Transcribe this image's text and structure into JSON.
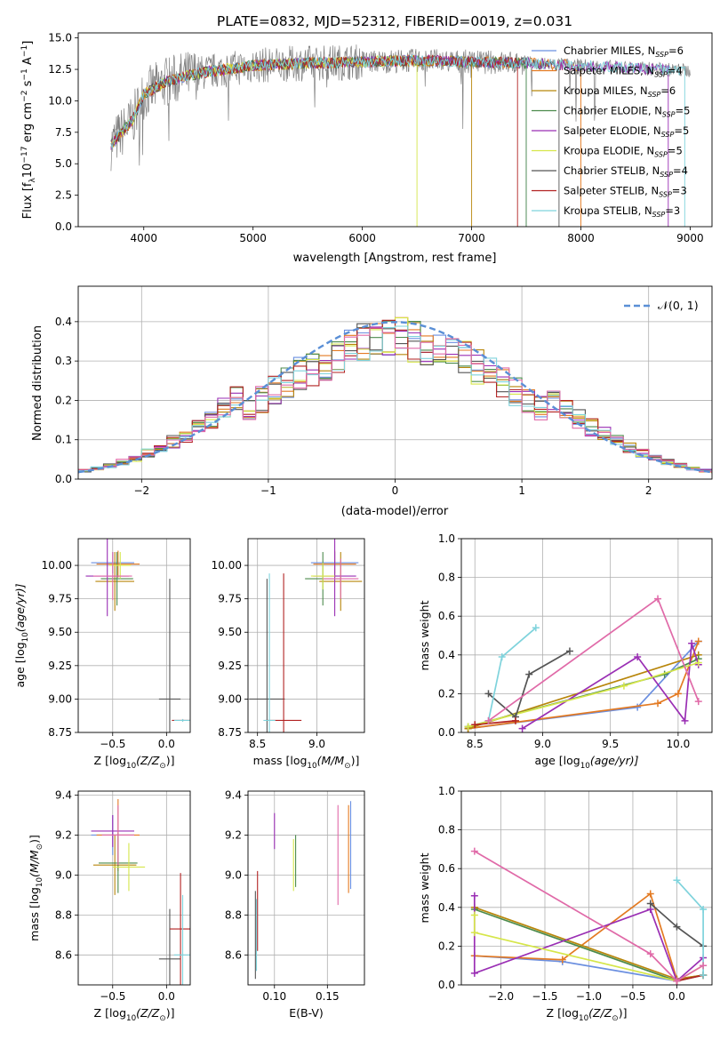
{
  "colors": [
    "#6b8fe0",
    "#e37a22",
    "#b8860b",
    "#4c8b4c",
    "#9a2fb4",
    "#d6e64a",
    "#555555",
    "#b22222",
    "#7fd3dc",
    "#e06aa8"
  ],
  "chart_data": [
    {
      "id": "spectrum",
      "type": "line",
      "title": "PLATE=0832, MJD=52312, FIBERID=0019, z=0.031",
      "xlabel": "wavelength [Angstrom, rest frame]",
      "ylabel": "Flux [f",
      "ylabel_parts": [
        "Flux [f",
        "λ",
        "10",
        "−17",
        " erg cm",
        "−2",
        " s",
        "−1",
        " A",
        "−1",
        "]"
      ],
      "xlim": [
        3400,
        9200
      ],
      "ylim": [
        0,
        15.4
      ],
      "xticks": [
        4000,
        5000,
        6000,
        7000,
        8000,
        9000
      ],
      "yticks": [
        0.0,
        2.5,
        5.0,
        7.5,
        10.0,
        12.5,
        15.0
      ],
      "legend": "top-right",
      "legend_entries": [
        {
          "model": "Chabrier MILES",
          "n": "6"
        },
        {
          "model": "Salpeter MILES",
          "n": "4"
        },
        {
          "model": "Kroupa MILES",
          "n": "6"
        },
        {
          "model": "Chabrier ELODIE",
          "n": "5"
        },
        {
          "model": "Salpeter ELODIE",
          "n": "5"
        },
        {
          "model": "Kroupa ELODIE",
          "n": "5"
        },
        {
          "model": "Chabrier STELIB",
          "n": "4"
        },
        {
          "model": "Salpeter STELIB",
          "n": "3"
        },
        {
          "model": "Kroupa STELIB",
          "n": "3"
        }
      ],
      "legend_n_label": "N",
      "legend_n_sub": "SSP",
      "data_series": {
        "name": "data",
        "color": "#808080",
        "x_range": [
          3700,
          9000
        ]
      },
      "continuum": {
        "x": [
          3700,
          3800,
          3900,
          4000,
          4200,
          4500,
          5000,
          5500,
          6000,
          6500,
          7000,
          7500,
          8000,
          8500,
          9000
        ],
        "y": [
          6.5,
          7.5,
          8.5,
          10.5,
          11.5,
          12.2,
          12.8,
          13.0,
          13.1,
          13.2,
          13.1,
          13.0,
          12.8,
          12.6,
          12.4
        ]
      },
      "model_end_x": [
        7500,
        8000,
        7000,
        7500,
        8800,
        6500,
        7800,
        7420,
        8950
      ]
    },
    {
      "id": "residuals",
      "type": "step",
      "xlabel": "(data-model)/error",
      "ylabel": "Normed distribution",
      "xlim": [
        -2.5,
        2.5
      ],
      "ylim": [
        0,
        0.49
      ],
      "xticks": [
        -2,
        -1,
        0,
        1,
        2
      ],
      "xtick_labels": [
        "−2",
        "−1",
        "0",
        "1",
        "2"
      ],
      "yticks": [
        0.0,
        0.1,
        0.2,
        0.3,
        0.4
      ],
      "legend": "top-right",
      "legend_entries": [
        "𝒩(0, 1)"
      ],
      "gaussian": {
        "mean": 0,
        "sigma": 1,
        "color": "#5a8fd6"
      },
      "bin_width": 0.1
    },
    {
      "id": "age-vs-Z",
      "type": "errorbar",
      "xlabel": "Z [log",
      "xlabel_parts": [
        "Z [log",
        "10",
        "(Z/Z",
        "⊙",
        ")]"
      ],
      "ylabel_parts": [
        "age  [log",
        "10",
        "(age/yr)]"
      ],
      "xlim": [
        -0.82,
        0.22
      ],
      "ylim": [
        8.75,
        10.2
      ],
      "xticks": [
        -0.5,
        0.0
      ],
      "xtick_labels": [
        "−0.5",
        "0.0"
      ],
      "yticks": [
        8.75,
        9.0,
        9.25,
        9.5,
        9.75,
        10.0
      ],
      "points": [
        {
          "x": -0.5,
          "y": 10.02,
          "xerr": 0.2,
          "yerr": 0.08
        },
        {
          "x": -0.45,
          "y": 10.01,
          "xerr": 0.2,
          "yerr": 0.1
        },
        {
          "x": -0.48,
          "y": 9.88,
          "xerr": 0.18,
          "yerr": 0.22
        },
        {
          "x": -0.46,
          "y": 9.9,
          "xerr": 0.15,
          "yerr": 0.2
        },
        {
          "x": -0.55,
          "y": 9.92,
          "xerr": 0.2,
          "yerr": 0.3
        },
        {
          "x": -0.43,
          "y": 10.0,
          "xerr": 0.1,
          "yerr": 0.1
        },
        {
          "x": 0.03,
          "y": 9.0,
          "xerr": 0.1,
          "yerr": 0.9
        },
        {
          "x": 0.15,
          "y": 8.84,
          "xerr": 0.1,
          "yerr": 0.01
        },
        {
          "x": 0.15,
          "y": 8.84,
          "xerr": 0.08,
          "yerr": 0.01
        },
        {
          "x": -0.5,
          "y": 9.92,
          "xerr": 0.18,
          "yerr": 0.18
        }
      ]
    },
    {
      "id": "age-vs-mass",
      "type": "errorbar",
      "xlabel_parts": [
        "mass [log",
        "10",
        "(M/M",
        "⊙",
        ")]"
      ],
      "xlim": [
        8.42,
        9.4
      ],
      "ylim": [
        8.75,
        10.2
      ],
      "xticks": [
        8.5,
        9.0
      ],
      "xtick_labels": [
        "8.5",
        "9.0"
      ],
      "yticks": [
        8.75,
        9.0,
        9.25,
        9.5,
        9.75,
        10.0
      ],
      "points": [
        {
          "x": 9.15,
          "y": 10.02,
          "xerr": 0.2,
          "yerr": 0.08
        },
        {
          "x": 9.15,
          "y": 10.01,
          "xerr": 0.18,
          "yerr": 0.1
        },
        {
          "x": 9.2,
          "y": 9.88,
          "xerr": 0.18,
          "yerr": 0.22
        },
        {
          "x": 9.05,
          "y": 9.9,
          "xerr": 0.15,
          "yerr": 0.2
        },
        {
          "x": 9.15,
          "y": 9.92,
          "xerr": 0.18,
          "yerr": 0.3
        },
        {
          "x": 9.05,
          "y": 9.92,
          "xerr": 0.1,
          "yerr": 0.1
        },
        {
          "x": 8.58,
          "y": 9.0,
          "xerr": 0.15,
          "yerr": 0.9
        },
        {
          "x": 8.72,
          "y": 8.84,
          "xerr": 0.15,
          "yerr": 1.1
        },
        {
          "x": 8.6,
          "y": 8.84,
          "xerr": 0.05,
          "yerr": 1.1
        },
        {
          "x": 9.2,
          "y": 9.9,
          "xerr": 0.15,
          "yerr": 0.15
        }
      ]
    },
    {
      "id": "weight-vs-age",
      "type": "line",
      "xlabel_parts": [
        "age  [log",
        "10",
        "(age/yr)]"
      ],
      "ylabel": "mass weight",
      "xlim": [
        8.4,
        10.25
      ],
      "ylim": [
        0,
        1.0
      ],
      "xticks": [
        8.5,
        9.0,
        9.5,
        10.0
      ],
      "xtick_labels": [
        "8.5",
        "9.0",
        "9.5",
        "10.0"
      ],
      "yticks": [
        0.0,
        0.2,
        0.4,
        0.6,
        0.8,
        1.0
      ],
      "series": [
        {
          "x": [
            8.45,
            9.7,
            10.15
          ],
          "y": [
            0.02,
            0.13,
            0.47
          ]
        },
        {
          "x": [
            8.45,
            9.85,
            10.0,
            10.15
          ],
          "y": [
            0.02,
            0.15,
            0.2,
            0.47
          ]
        },
        {
          "x": [
            8.45,
            10.15
          ],
          "y": [
            0.02,
            0.4
          ]
        },
        {
          "x": [
            8.45,
            9.9,
            10.15
          ],
          "y": [
            0.03,
            0.3,
            0.38
          ]
        },
        {
          "x": [
            8.85,
            9.7,
            10.05,
            10.1,
            10.15
          ],
          "y": [
            0.02,
            0.39,
            0.06,
            0.46,
            0.35
          ]
        },
        {
          "x": [
            8.45,
            9.6,
            10.15
          ],
          "y": [
            0.03,
            0.24,
            0.36
          ]
        },
        {
          "x": [
            8.6,
            8.8,
            8.9,
            9.2
          ],
          "y": [
            0.2,
            0.08,
            0.3,
            0.42
          ]
        },
        {
          "x": [
            8.5,
            8.8
          ],
          "y": [
            0.04,
            0.06
          ]
        },
        {
          "x": [
            8.6,
            8.7,
            8.95
          ],
          "y": [
            0.06,
            0.39,
            0.54
          ]
        },
        {
          "x": [
            8.6,
            9.85,
            10.15
          ],
          "y": [
            0.06,
            0.69,
            0.16
          ]
        }
      ]
    },
    {
      "id": "mass-vs-Z",
      "type": "errorbar",
      "xlabel_parts": [
        "Z [log",
        "10",
        "(Z/Z",
        "⊙",
        ")]"
      ],
      "ylabel_parts": [
        "mass [log",
        "10",
        "(M/M",
        "⊙",
        ")]"
      ],
      "xlim": [
        -0.82,
        0.22
      ],
      "ylim": [
        8.45,
        9.42
      ],
      "xticks": [
        -0.5,
        0.0
      ],
      "xtick_labels": [
        "−0.5",
        "0.0"
      ],
      "yticks": [
        8.6,
        8.8,
        9.0,
        9.2,
        9.4
      ],
      "points": [
        {
          "x": -0.5,
          "y": 9.2,
          "xerr": 0.2,
          "yerr": 0.1
        },
        {
          "x": -0.45,
          "y": 9.2,
          "xerr": 0.2,
          "yerr": 0.18
        },
        {
          "x": -0.48,
          "y": 9.05,
          "xerr": 0.2,
          "yerr": 0.15
        },
        {
          "x": -0.45,
          "y": 9.06,
          "xerr": 0.18,
          "yerr": 0.15
        },
        {
          "x": -0.5,
          "y": 9.22,
          "xerr": 0.2,
          "yerr": 0.08
        },
        {
          "x": -0.35,
          "y": 9.04,
          "xerr": 0.15,
          "yerr": 0.12
        },
        {
          "x": 0.03,
          "y": 8.58,
          "xerr": 0.1,
          "yerr": 0.25
        },
        {
          "x": 0.13,
          "y": 8.73,
          "xerr": 0.1,
          "yerr": 0.28
        },
        {
          "x": 0.15,
          "y": 8.6,
          "xerr": 0.08,
          "yerr": 0.3
        },
        {
          "x": -0.45,
          "y": 9.2,
          "xerr": 0.15,
          "yerr": 0.15
        }
      ]
    },
    {
      "id": "mass-vs-ebv",
      "type": "errorbar",
      "xlabel": "E(B-V)",
      "xlim": [
        0.075,
        0.185
      ],
      "ylim": [
        8.45,
        9.42
      ],
      "xticks": [
        0.1,
        0.15
      ],
      "xtick_labels": [
        "0.10",
        "0.15"
      ],
      "yticks": [
        8.6,
        8.8,
        9.0,
        9.2,
        9.4
      ],
      "points": [
        {
          "x": 0.172,
          "y": 9.15,
          "xerr": 0,
          "yerr": 0.22
        },
        {
          "x": 0.17,
          "y": 9.13,
          "xerr": 0,
          "yerr": 0.22
        },
        {
          "x": 0.1,
          "y": 9.0,
          "xerr": 0,
          "yerr": 0
        },
        {
          "x": 0.12,
          "y": 9.07,
          "xerr": 0,
          "yerr": 0.13
        },
        {
          "x": 0.1,
          "y": 9.22,
          "xerr": 0,
          "yerr": 0.09
        },
        {
          "x": 0.118,
          "y": 9.05,
          "xerr": 0,
          "yerr": 0.13
        },
        {
          "x": 0.082,
          "y": 8.7,
          "xerr": 0,
          "yerr": 0.22
        },
        {
          "x": 0.084,
          "y": 8.82,
          "xerr": 0,
          "yerr": 0.2
        },
        {
          "x": 0.083,
          "y": 8.7,
          "xerr": 0,
          "yerr": 0.18
        },
        {
          "x": 0.16,
          "y": 9.1,
          "xerr": 0,
          "yerr": 0.25
        }
      ]
    },
    {
      "id": "weight-vs-Z",
      "type": "line",
      "xlabel_parts": [
        "Z [log",
        "10",
        "(Z/Z",
        "⊙",
        ")]"
      ],
      "ylabel": "mass weight",
      "xlim": [
        -2.45,
        0.4
      ],
      "ylim": [
        0,
        1.0
      ],
      "xticks": [
        -2.0,
        -1.5,
        -1.0,
        -0.5,
        0.0
      ],
      "xtick_labels": [
        "−2.0",
        "−1.5",
        "−1.0",
        "−0.5",
        "0.0"
      ],
      "yticks": [
        0.0,
        0.2,
        0.4,
        0.6,
        0.8,
        1.0
      ],
      "series": [
        {
          "x": [
            -2.3,
            -1.3,
            0.0
          ],
          "y": [
            0.15,
            0.12,
            0.02
          ]
        },
        {
          "x": [
            -2.3,
            -1.3,
            -0.3,
            0.0,
            0.3
          ],
          "y": [
            0.15,
            0.13,
            0.47,
            0.03,
            0.05
          ]
        },
        {
          "x": [
            -2.3,
            0.0,
            0.3
          ],
          "y": [
            0.4,
            0.03,
            0.05
          ]
        },
        {
          "x": [
            -2.3,
            0.0,
            0.3
          ],
          "y": [
            0.39,
            0.02,
            0.05
          ]
        },
        {
          "x": [
            -2.3,
            -2.3,
            -0.3,
            0.0,
            0.3
          ],
          "y": [
            0.46,
            0.06,
            0.39,
            0.02,
            0.14
          ]
        },
        {
          "x": [
            -2.3,
            -2.3,
            0.0,
            0.3
          ],
          "y": [
            0.36,
            0.27,
            0.02,
            0.1
          ]
        },
        {
          "x": [
            -0.3,
            0.0,
            0.3
          ],
          "y": [
            0.42,
            0.3,
            0.2
          ]
        },
        {
          "x": [
            0.0,
            0.3
          ],
          "y": [
            0.02,
            0.05
          ]
        },
        {
          "x": [
            0.0,
            0.3,
            0.3
          ],
          "y": [
            0.54,
            0.39,
            0.05
          ]
        },
        {
          "x": [
            -2.3,
            -0.3,
            0.0,
            0.3
          ],
          "y": [
            0.69,
            0.16,
            0.02,
            0.1
          ]
        }
      ]
    }
  ]
}
